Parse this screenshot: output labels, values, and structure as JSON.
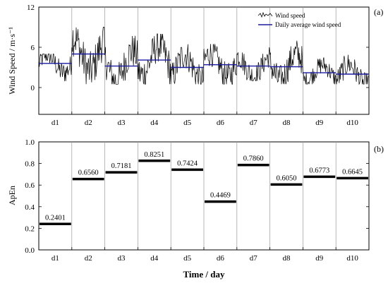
{
  "figure": {
    "xlabel": "Time / day"
  },
  "chart_data": [
    {
      "type": "line",
      "panel_label": "(a)",
      "ylabel": "Wind Speed / m·s⁻¹",
      "ylim": [
        -4,
        12
      ],
      "yticks": [
        "0",
        "6",
        "12"
      ],
      "categories": [
        "d1",
        "d2",
        "d3",
        "d4",
        "d5",
        "d6",
        "d7",
        "d8",
        "d9",
        "d10"
      ],
      "grid": "vertical day separators",
      "legend_position": "top-right",
      "series": [
        {
          "name": "Wind speed",
          "color": "#000000",
          "style": "raw high-frequency trace",
          "approx_daily_range": [
            [
              0.3,
              5.0
            ],
            [
              0.5,
              9.0
            ],
            [
              0.5,
              8.0
            ],
            [
              0.5,
              8.0
            ],
            [
              0.5,
              7.0
            ],
            [
              0.5,
              6.5
            ],
            [
              1.0,
              6.0
            ],
            [
              0.5,
              7.0
            ],
            [
              0.5,
              4.5
            ],
            [
              0.5,
              5.5
            ]
          ]
        },
        {
          "name": "Daily average wind speed",
          "color": "#1a1aa0",
          "style": "step",
          "values": [
            3.6,
            5.0,
            3.2,
            4.1,
            3.0,
            3.4,
            3.2,
            3.1,
            2.2,
            2.0
          ]
        }
      ]
    },
    {
      "type": "bar",
      "style": "horizontal level segments",
      "panel_label": "(b)",
      "ylabel": "ApEn",
      "ylim": [
        0.0,
        1.0
      ],
      "yticks": [
        "0.0",
        "0.2",
        "0.4",
        "0.6",
        "0.8",
        "1.0"
      ],
      "categories": [
        "d1",
        "d2",
        "d3",
        "d4",
        "d5",
        "d6",
        "d7",
        "d8",
        "d9",
        "d10"
      ],
      "values": [
        0.2401,
        0.656,
        0.7181,
        0.8251,
        0.7424,
        0.4469,
        0.786,
        0.605,
        0.6773,
        0.6645
      ],
      "value_labels": [
        "0.2401",
        "0.6560",
        "0.7181",
        "0.8251",
        "0.7424",
        "0.4469",
        "0.7860",
        "0.6050",
        "0.6773",
        "0.6645"
      ],
      "grid": "vertical day separators"
    }
  ]
}
